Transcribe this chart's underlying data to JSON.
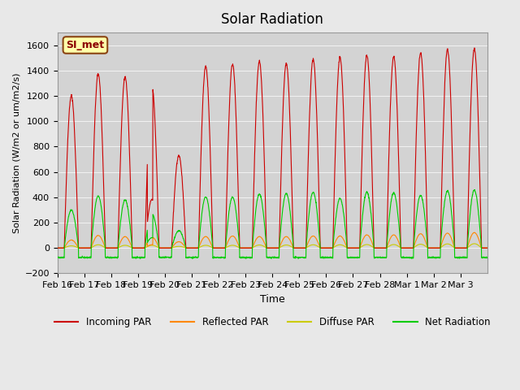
{
  "title": "Solar Radiation",
  "ylabel": "Solar Radiation (W/m2 or um/m2/s)",
  "xlabel": "Time",
  "ylim": [
    -200,
    1700
  ],
  "yticks": [
    -200,
    0,
    200,
    400,
    600,
    800,
    1000,
    1200,
    1400,
    1600
  ],
  "x_tick_labels": [
    "Feb 16",
    "Feb 17",
    "Feb 18",
    "Feb 19",
    "Feb 20",
    "Feb 21",
    "Feb 22",
    "Feb 23",
    "Feb 24",
    "Feb 25",
    "Feb 26",
    "Feb 27",
    "Feb 28",
    "Mar 1",
    "Mar 2",
    "Mar 3"
  ],
  "station_label": "SI_met",
  "bg_color": "#e8e8e8",
  "plot_bg_color": "#d3d3d3",
  "line_colors": {
    "incoming": "#cc0000",
    "reflected": "#ff8800",
    "diffuse": "#cccc00",
    "net": "#00cc00"
  },
  "legend_labels": [
    "Incoming PAR",
    "Reflected PAR",
    "Diffuse PAR",
    "Net Radiation"
  ],
  "day_peaks_incoming": [
    1200,
    1375,
    1350,
    1275,
    730,
    1430,
    1450,
    1470,
    1455,
    1490,
    1500,
    1520,
    1510,
    1540,
    1565,
    1570
  ],
  "day_peaks_net": [
    300,
    410,
    380,
    270,
    135,
    405,
    400,
    425,
    430,
    440,
    390,
    440,
    435,
    415,
    450,
    455
  ],
  "day_peaks_reflected": [
    70,
    110,
    100,
    95,
    55,
    100,
    105,
    100,
    100,
    105,
    105,
    115,
    115,
    125,
    130,
    135
  ],
  "day_peaks_diffuse": [
    20,
    30,
    25,
    25,
    15,
    25,
    25,
    28,
    28,
    30,
    30,
    32,
    32,
    35,
    38,
    40
  ],
  "night_net": -75,
  "num_days": 16,
  "points_per_day": 144
}
